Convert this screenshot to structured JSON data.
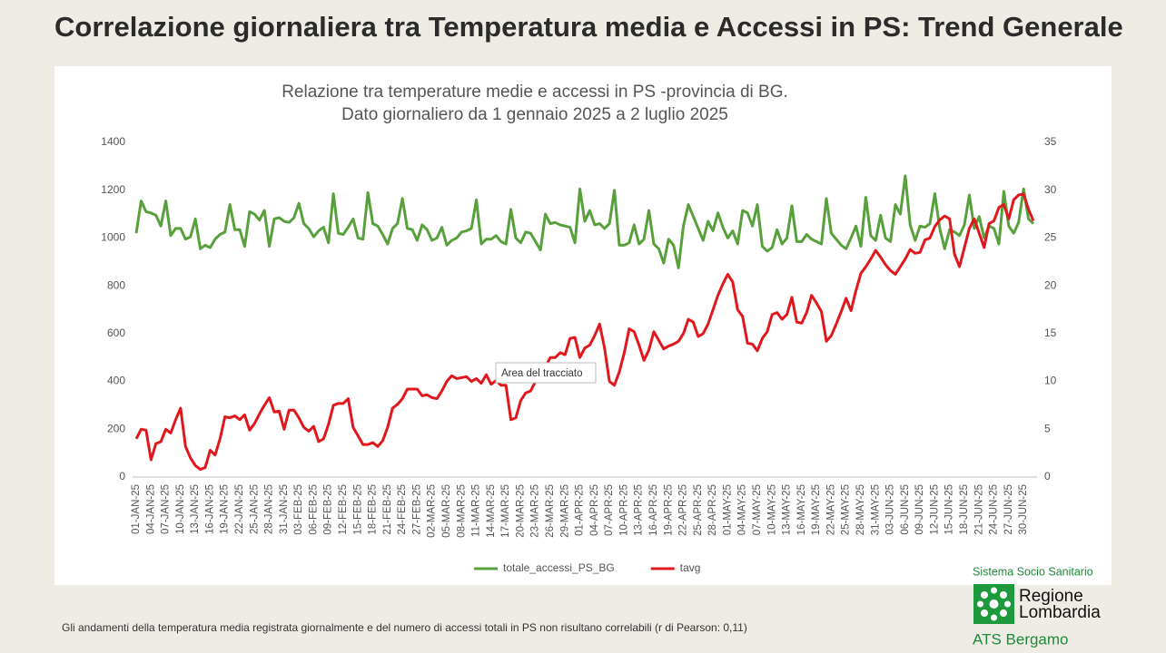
{
  "header": {
    "title": "Correlazione giornaliera tra Temperatura media e Accessi in PS: Trend Generale"
  },
  "footnote": "Gli andamenti della temperatura media registrata giornalmente e del numero di accessi totali in PS non risultano correlabili (r di Pearson: 0,11)",
  "logo": {
    "top": "Sistema Socio Sanitario",
    "line1": "Regione",
    "line2": "Lombardia",
    "bottom": "ATS Bergamo"
  },
  "chart_data": {
    "type": "line",
    "title": "Relazione tra temperature medie e accessi in PS -provincia di BG.",
    "subtitle": "Dato giornaliero da 1 gennaio 2025 a 2 luglio 2025",
    "annotation": "Area del tracciato",
    "categories": [
      "01-JAN-25",
      null,
      null,
      "04-JAN-25",
      null,
      null,
      "07-JAN-25",
      null,
      null,
      "10-JAN-25",
      null,
      null,
      "13-JAN-25",
      null,
      null,
      "16-JAN-25",
      null,
      null,
      "19-JAN-25",
      null,
      null,
      "22-JAN-25",
      null,
      null,
      "25-JAN-25",
      null,
      null,
      "28-JAN-25",
      null,
      null,
      "31-JAN-25",
      null,
      null,
      "03-FEB-25",
      null,
      null,
      "06-FEB-25",
      null,
      null,
      "09-FEB-25",
      null,
      null,
      "12-FEB-25",
      null,
      null,
      "15-FEB-25",
      null,
      null,
      "18-FEB-25",
      null,
      null,
      "21-FEB-25",
      null,
      null,
      "24-FEB-25",
      null,
      null,
      "27-FEB-25",
      null,
      null,
      "02-MAR-25",
      null,
      null,
      "05-MAR-25",
      null,
      null,
      "08-MAR-25",
      null,
      null,
      "11-MAR-25",
      null,
      null,
      "14-MAR-25",
      null,
      null,
      "17-MAR-25",
      null,
      null,
      "20-MAR-25",
      null,
      null,
      "23-MAR-25",
      null,
      null,
      "26-MAR-25",
      null,
      null,
      "29-MAR-25",
      null,
      null,
      "01-APR-25",
      null,
      null,
      "04-APR-25",
      null,
      null,
      "07-APR-25",
      null,
      null,
      "10-APR-25",
      null,
      null,
      "13-APR-25",
      null,
      null,
      "16-APR-25",
      null,
      null,
      "19-APR-25",
      null,
      null,
      "22-APR-25",
      null,
      null,
      "25-APR-25",
      null,
      null,
      "28-APR-25",
      null,
      null,
      "01-MAY-25",
      null,
      null,
      "04-MAY-25",
      null,
      null,
      "07-MAY-25",
      null,
      null,
      "10-MAY-25",
      null,
      null,
      "13-MAY-25",
      null,
      null,
      "16-MAY-25",
      null,
      null,
      "19-MAY-25",
      null,
      null,
      "22-MAY-25",
      null,
      null,
      "25-MAY-25",
      null,
      null,
      "28-MAY-25",
      null,
      null,
      "31-MAY-25",
      null,
      null,
      "03-JUN-25",
      null,
      null,
      "06-JUN-25",
      null,
      null,
      "09-JUN-25",
      null,
      null,
      "12-JUN-25",
      null,
      null,
      "15-JUN-25",
      null,
      null,
      "18-JUN-25",
      null,
      null,
      "21-JUN-25",
      null,
      null,
      "24-JUN-25",
      null,
      null,
      "27-JUN-25",
      null,
      null,
      "30-JUN-25",
      null,
      null
    ],
    "series": [
      {
        "name": "totale_accessi_PS_BG",
        "color": "#58a03c",
        "axis": "y",
        "values": [
          1020,
          1155,
          1110,
          1105,
          1095,
          1050,
          1155,
          1010,
          1040,
          1040,
          995,
          1005,
          1080,
          955,
          970,
          960,
          995,
          1015,
          1025,
          1140,
          1035,
          1035,
          965,
          1110,
          1100,
          1075,
          1115,
          965,
          1080,
          1085,
          1070,
          1065,
          1085,
          1145,
          1060,
          1040,
          1005,
          1030,
          1045,
          980,
          1185,
          1020,
          1015,
          1045,
          1080,
          1000,
          995,
          1190,
          1060,
          1050,
          1015,
          975,
          1040,
          1060,
          1165,
          1040,
          1035,
          990,
          1055,
          1035,
          990,
          1000,
          1045,
          970,
          990,
          1000,
          1025,
          1030,
          1040,
          1160,
          975,
          995,
          995,
          1010,
          985,
          975,
          1120,
          1000,
          980,
          1025,
          1020,
          985,
          950,
          1100,
          1060,
          1065,
          1055,
          1050,
          1045,
          980,
          1205,
          1070,
          1115,
          1055,
          1060,
          1040,
          1060,
          1200,
          970,
          970,
          980,
          1055,
          975,
          995,
          1115,
          975,
          955,
          895,
          995,
          970,
          875,
          1050,
          1140,
          1090,
          1040,
          990,
          1070,
          1030,
          1105,
          1045,
          1000,
          1030,
          975,
          1115,
          1105,
          1050,
          1140,
          965,
          945,
          960,
          1035,
          975,
          1000,
          1135,
          985,
          985,
          1015,
          995,
          985,
          975,
          1165,
          1020,
          995,
          970,
          955,
          1000,
          1050,
          965,
          1170,
          1010,
          990,
          1095,
          1000,
          985,
          1140,
          1100,
          1260,
          1055,
          990,
          1050,
          1045,
          1060,
          1185,
          1040,
          955,
          1035,
          1025,
          1010,
          1055,
          1180,
          1040,
          1090,
          1000,
          1050,
          1040,
          975,
          1195,
          1050,
          1020,
          1065,
          1205,
          1080,
          1060
        ]
      },
      {
        "name": "tavg",
        "color": "#e0171c",
        "axis": "y2",
        "values": [
          4,
          5,
          4.9,
          1.8,
          3.5,
          3.7,
          5,
          4.6,
          6,
          7.2,
          3.2,
          2,
          1.2,
          0.8,
          1,
          2.8,
          2.3,
          4,
          6.3,
          6.2,
          6.4,
          6,
          6.5,
          4.9,
          5.6,
          6.6,
          7.5,
          8.3,
          6.8,
          6.9,
          5,
          7,
          7,
          6.2,
          5.2,
          4.8,
          5.3,
          3.7,
          4,
          5.5,
          7.5,
          7.7,
          7.7,
          8.2,
          5.2,
          4.3,
          3.4,
          3.4,
          3.6,
          3.2,
          3.8,
          5.2,
          7.2,
          7.6,
          8.2,
          9.2,
          9.2,
          9.2,
          8.5,
          8.6,
          8.3,
          8.2,
          9,
          10,
          10.6,
          10.3,
          10.4,
          10.5,
          10,
          10.3,
          9.8,
          10.7,
          9.7,
          10.1,
          9.6,
          9.6,
          6,
          6.2,
          8,
          8.8,
          9,
          10,
          11,
          11.5,
          12.5,
          12.5,
          13,
          12.8,
          14.5,
          14.6,
          12.5,
          13.5,
          13.8,
          14.8,
          16,
          13.5,
          10,
          9.6,
          11,
          13,
          15.5,
          15.2,
          13.8,
          12.2,
          13.3,
          15.2,
          14.3,
          13.4,
          13.7,
          13.9,
          14.2,
          15,
          16.5,
          16.2,
          14.7,
          15,
          16,
          17.5,
          19,
          20.2,
          21.2,
          20.4,
          17.5,
          16.8,
          14,
          13.9,
          13.2,
          14.5,
          15.2,
          17,
          17.2,
          16.5,
          17,
          18.8,
          16.2,
          16.1,
          17.2,
          19,
          18.2,
          17.3,
          14.2,
          14.8,
          16,
          17.3,
          18.7,
          17.4,
          19.5,
          21.3,
          22,
          22.8,
          23.7,
          23,
          22.2,
          21.6,
          21.2,
          22,
          22.8,
          23.8,
          23.4,
          23.5,
          24.8,
          25,
          26.2,
          26.9,
          27.3,
          27,
          23.3,
          22,
          24,
          26,
          27,
          25.5,
          24,
          26.5,
          26.8,
          28.2,
          28.5,
          27,
          29,
          29.5,
          29.6,
          28,
          26.8
        ]
      }
    ],
    "ylim": [
      0,
      1400
    ],
    "yticks": [
      0,
      200,
      400,
      600,
      800,
      1000,
      1200,
      1400
    ],
    "y2lim": [
      0,
      35
    ],
    "y2ticks": [
      0,
      5,
      10,
      15,
      20,
      25,
      30,
      35
    ],
    "grid": false,
    "legend": "bottom"
  }
}
